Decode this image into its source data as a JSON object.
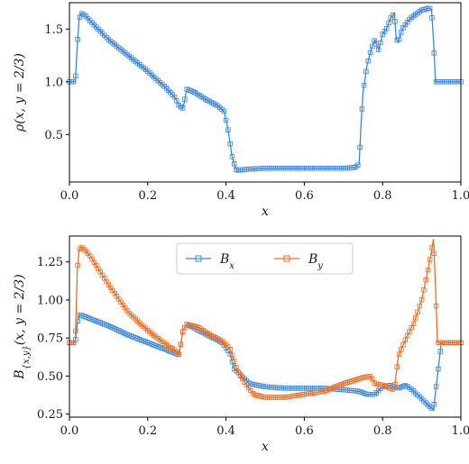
{
  "chart_data": [
    {
      "type": "line",
      "xlabel": "x",
      "ylabel": "ρ(x, y = 2/3)",
      "xlim": [
        0.0,
        1.0
      ],
      "ylim": [
        0.05,
        1.75
      ],
      "xticks": [
        "0.0",
        "0.2",
        "0.4",
        "0.6",
        "0.8",
        "1.0"
      ],
      "xtick_values": [
        0.0,
        0.2,
        0.4,
        0.6,
        0.8,
        1.0
      ],
      "yticks": [
        "0.5",
        "1.0",
        "1.5"
      ],
      "ytick_values": [
        0.5,
        1.0,
        1.5
      ],
      "grid": false,
      "marker": "square",
      "series": [
        {
          "color": "#3a87d9",
          "x": [
            0.0,
            0.015,
            0.02,
            0.025,
            0.03,
            0.04,
            0.06,
            0.1,
            0.15,
            0.2,
            0.25,
            0.27,
            0.28,
            0.29,
            0.3,
            0.32,
            0.35,
            0.38,
            0.395,
            0.405,
            0.415,
            0.425,
            0.43,
            0.45,
            0.5,
            0.6,
            0.7,
            0.73,
            0.74,
            0.745,
            0.75,
            0.76,
            0.77,
            0.78,
            0.79,
            0.8,
            0.81,
            0.82,
            0.83,
            0.835,
            0.84,
            0.85,
            0.87,
            0.9,
            0.92,
            0.925,
            0.93,
            0.935,
            1.0
          ],
          "y": [
            1.0,
            1.0,
            1.35,
            1.6,
            1.65,
            1.63,
            1.55,
            1.4,
            1.25,
            1.1,
            0.93,
            0.85,
            0.77,
            0.75,
            0.93,
            0.9,
            0.83,
            0.77,
            0.72,
            0.55,
            0.3,
            0.17,
            0.16,
            0.17,
            0.18,
            0.18,
            0.18,
            0.19,
            0.22,
            0.6,
            0.9,
            1.15,
            1.3,
            1.4,
            1.3,
            1.45,
            1.5,
            1.6,
            1.65,
            1.4,
            1.38,
            1.5,
            1.6,
            1.68,
            1.7,
            1.68,
            1.4,
            1.0,
            1.0
          ]
        }
      ]
    },
    {
      "type": "line",
      "xlabel": "x",
      "ylabel": "B_{x,y}(x, y = 2/3)",
      "xlim": [
        0.0,
        1.0
      ],
      "ylim": [
        0.23,
        1.42
      ],
      "xticks": [
        "0.0",
        "0.2",
        "0.4",
        "0.6",
        "0.8",
        "1.0"
      ],
      "xtick_values": [
        0.0,
        0.2,
        0.4,
        0.6,
        0.8,
        1.0
      ],
      "yticks": [
        "0.25",
        "0.50",
        "0.75",
        "1.00",
        "1.25"
      ],
      "ytick_values": [
        0.25,
        0.5,
        0.75,
        1.0,
        1.25
      ],
      "grid": false,
      "legend": "top-center",
      "marker": "square",
      "series": [
        {
          "name": "B_x",
          "color": "#3a87d9",
          "x": [
            0.0,
            0.015,
            0.02,
            0.025,
            0.03,
            0.05,
            0.1,
            0.15,
            0.2,
            0.25,
            0.27,
            0.28,
            0.29,
            0.3,
            0.33,
            0.36,
            0.39,
            0.41,
            0.42,
            0.44,
            0.46,
            0.5,
            0.55,
            0.6,
            0.65,
            0.7,
            0.74,
            0.76,
            0.78,
            0.8,
            0.82,
            0.84,
            0.86,
            0.88,
            0.9,
            0.92,
            0.93,
            0.94,
            0.95,
            1.0
          ],
          "y": [
            0.72,
            0.72,
            0.85,
            0.9,
            0.9,
            0.88,
            0.83,
            0.77,
            0.72,
            0.67,
            0.65,
            0.64,
            0.8,
            0.84,
            0.8,
            0.76,
            0.72,
            0.65,
            0.55,
            0.5,
            0.45,
            0.43,
            0.42,
            0.42,
            0.42,
            0.41,
            0.4,
            0.38,
            0.38,
            0.43,
            0.44,
            0.42,
            0.44,
            0.4,
            0.35,
            0.3,
            0.28,
            0.5,
            0.72,
            0.72
          ]
        },
        {
          "name": "B_y",
          "color": "#e8702a",
          "x": [
            0.0,
            0.015,
            0.02,
            0.025,
            0.03,
            0.05,
            0.1,
            0.15,
            0.2,
            0.25,
            0.27,
            0.28,
            0.29,
            0.3,
            0.33,
            0.36,
            0.39,
            0.41,
            0.43,
            0.45,
            0.47,
            0.5,
            0.55,
            0.6,
            0.65,
            0.7,
            0.75,
            0.77,
            0.78,
            0.8,
            0.82,
            0.83,
            0.84,
            0.86,
            0.88,
            0.9,
            0.92,
            0.93,
            0.935,
            0.94,
            1.0
          ],
          "y": [
            0.72,
            0.72,
            1.2,
            1.33,
            1.35,
            1.3,
            1.1,
            0.92,
            0.8,
            0.7,
            0.67,
            0.64,
            0.8,
            0.84,
            0.82,
            0.77,
            0.73,
            0.68,
            0.53,
            0.45,
            0.38,
            0.36,
            0.36,
            0.38,
            0.4,
            0.45,
            0.49,
            0.5,
            0.45,
            0.44,
            0.42,
            0.41,
            0.63,
            0.75,
            0.85,
            1.0,
            1.25,
            1.4,
            1.1,
            0.72,
            0.72
          ]
        }
      ]
    }
  ]
}
